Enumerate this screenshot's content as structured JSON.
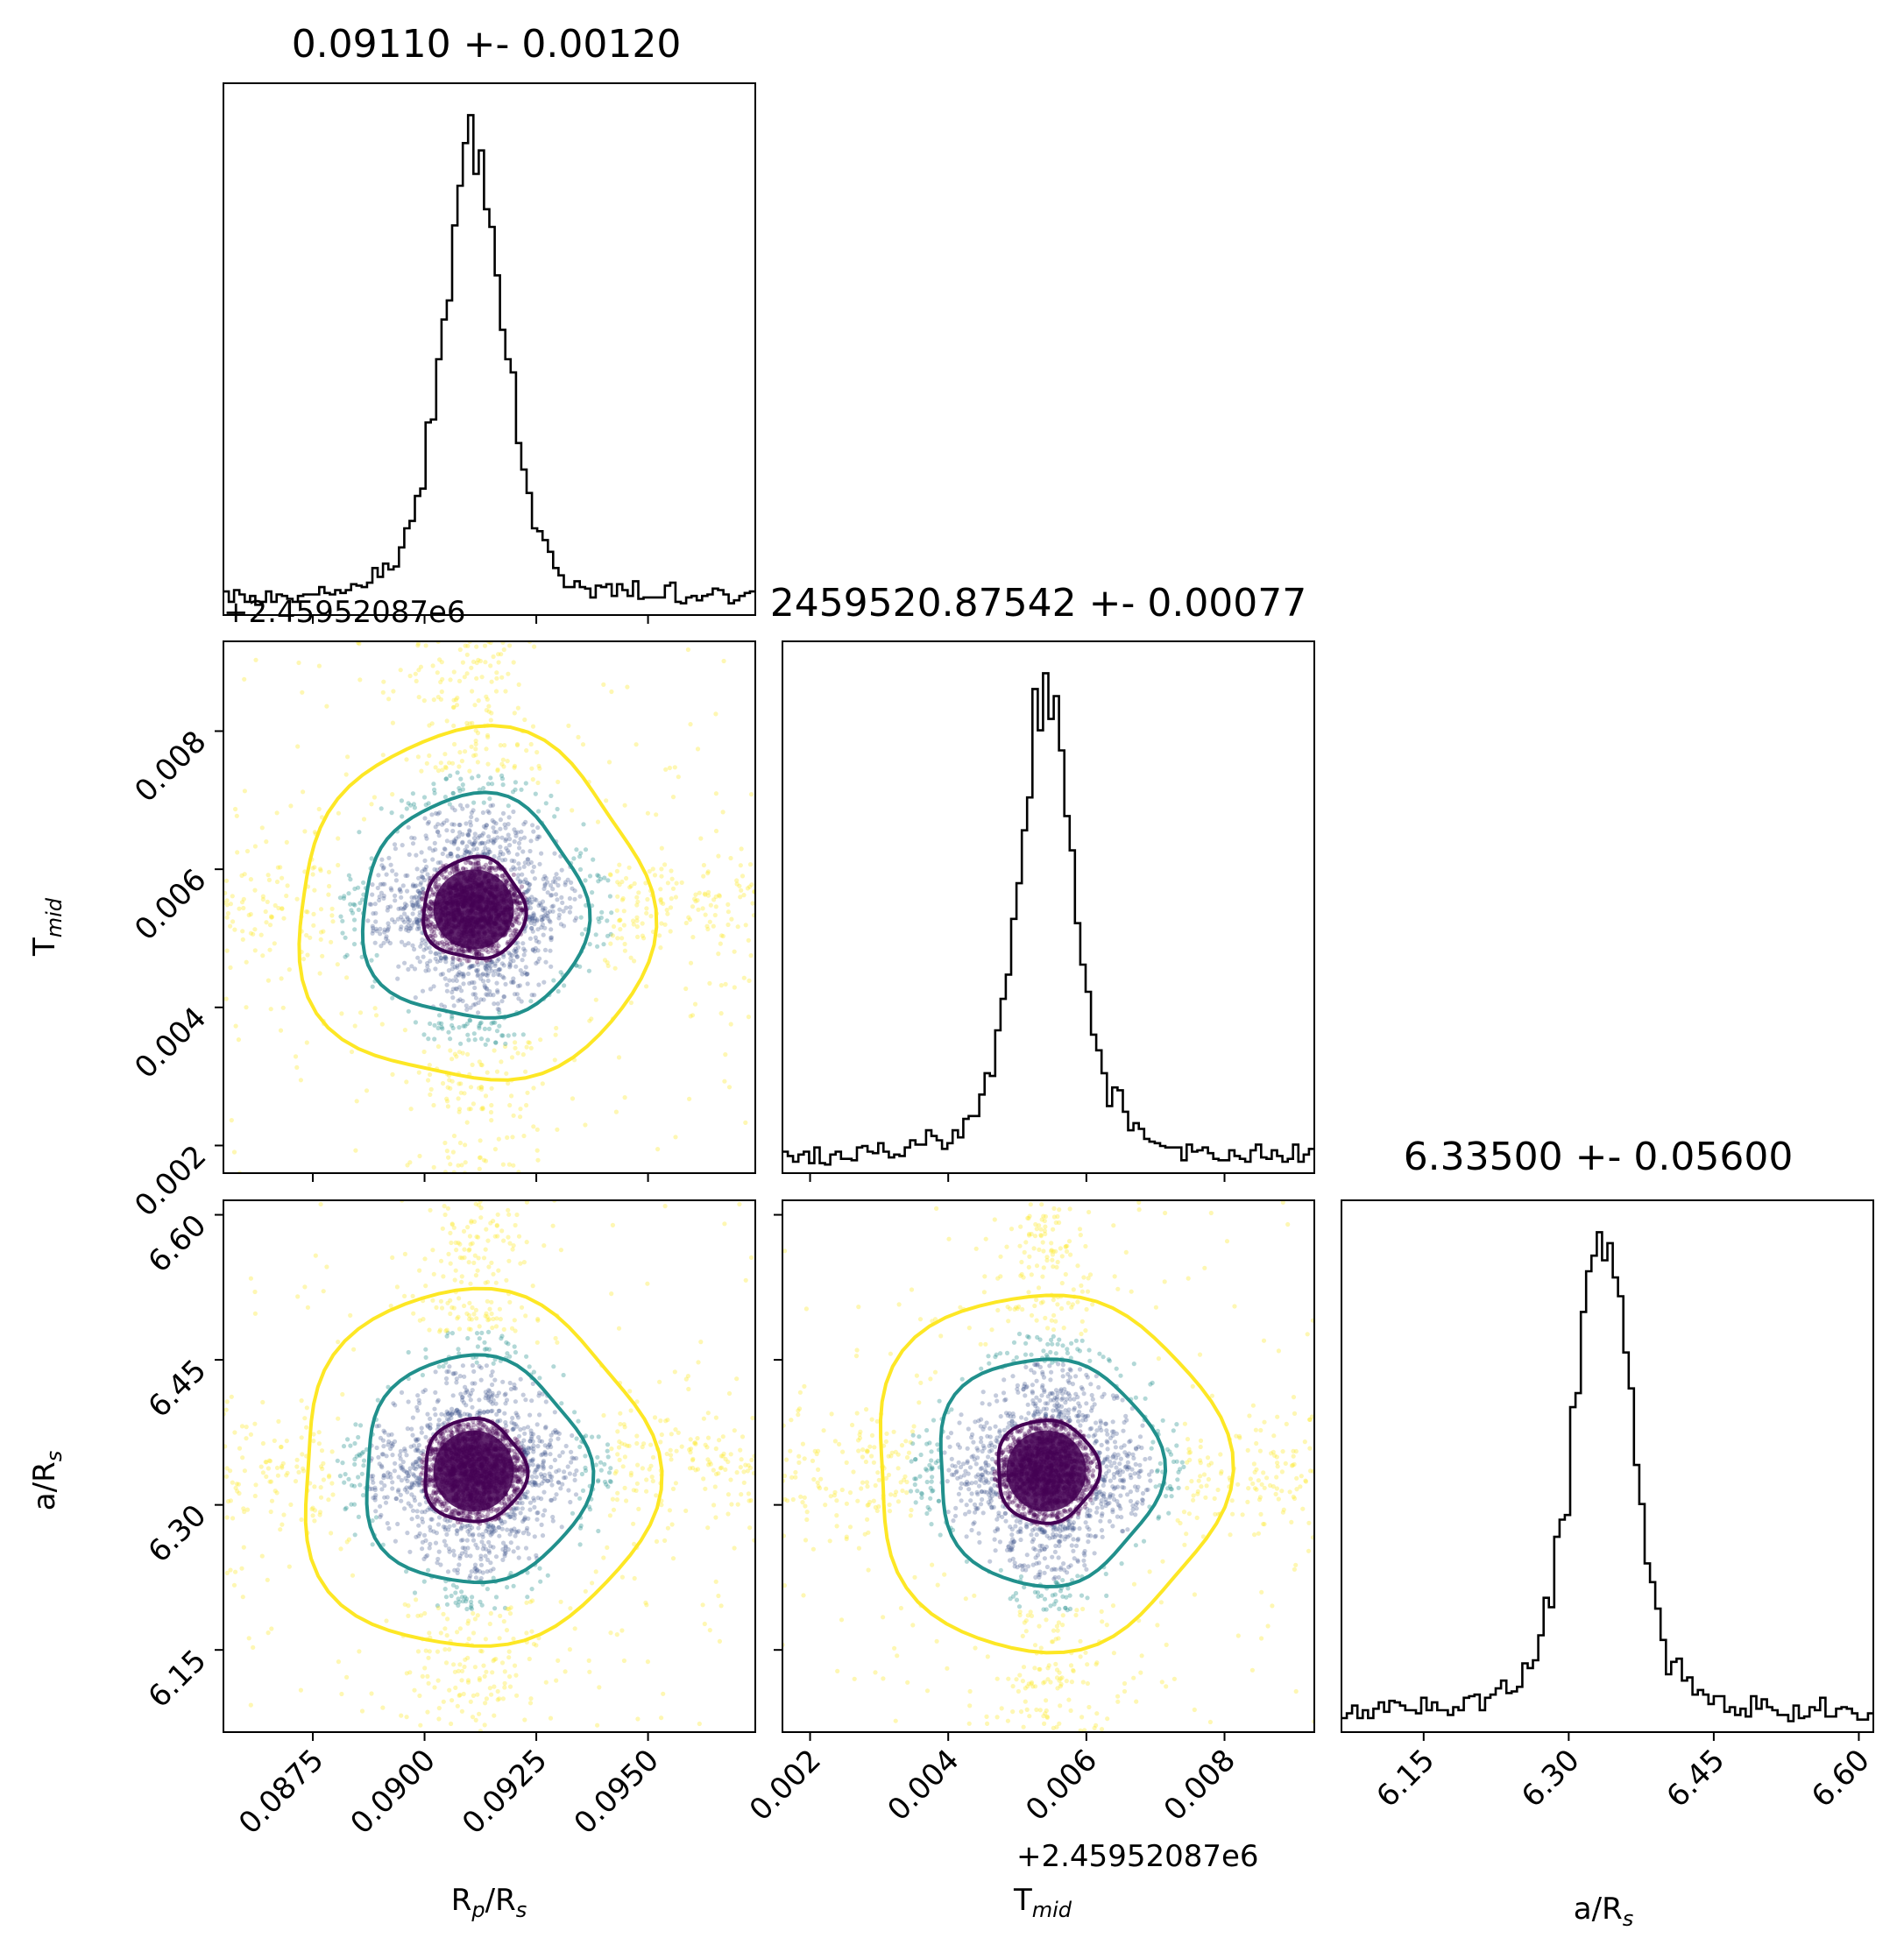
{
  "chart_data": {
    "type": "corner",
    "parameters": [
      {
        "name": "R_p/R_s",
        "label": "Rp/Rs",
        "label_sub": "p",
        "range": [
          0.0855,
          0.0974
        ],
        "ticks": [
          0.0875,
          0.09,
          0.0925,
          0.095
        ],
        "tick_labels": [
          "0.0875",
          "0.0900",
          "0.0925",
          "0.0950"
        ],
        "title": "0.09110 +- 0.00120",
        "mean": 0.0911,
        "sigma": 0.0012,
        "offset_text": ""
      },
      {
        "name": "T_mid",
        "label": "Tmid",
        "label_sub": "mid",
        "range": [
          0.0016,
          0.0093
        ],
        "ticks": [
          0.002,
          0.004,
          0.006,
          0.008
        ],
        "tick_labels": [
          "0.002",
          "0.004",
          "0.006",
          "0.008"
        ],
        "title": "2459520.87542 +- 0.00077",
        "mean": 0.00542,
        "sigma": 0.00077,
        "offset_text": "+2.45952087e6"
      },
      {
        "name": "a/R_s",
        "label": "a/Rs",
        "label_sub": "s",
        "range": [
          6.065,
          6.615
        ],
        "ticks": [
          6.15,
          6.3,
          6.45,
          6.6
        ],
        "tick_labels": [
          "6.15",
          "6.30",
          "6.45",
          "6.60"
        ],
        "title": "6.33500 +- 0.05600",
        "mean": 6.335,
        "sigma": 0.056,
        "offset_text": ""
      }
    ],
    "histogram_bins": 100,
    "samples_per_panel": 3000,
    "contour_levels": [
      "inner",
      "middle",
      "outer"
    ],
    "colors": {
      "inner": "#440154",
      "middle": "#21908c",
      "outer": "#fde725",
      "hist": "#000000"
    }
  },
  "labels": {
    "title_x": "0.09110 +- 0.00120",
    "title_t": "2459520.87542 +- 0.00077",
    "title_a": "6.33500 +- 0.05600",
    "offset_row1": "+2.45952087e6",
    "offset_bottom": "+2.45952087e6",
    "ylabel_t_main": "T",
    "ylabel_t_sub": "mid",
    "ylabel_a_main": "a/R",
    "ylabel_a_sub": "s",
    "xlabel_rp_main": "R",
    "xlabel_rp_sub": "p",
    "xlabel_rp_tail": "/R",
    "xlabel_rp_sub2": "s",
    "xlabel_t_main": "T",
    "xlabel_t_sub": "mid",
    "xlabel_a_main": "a/R",
    "xlabel_a_sub": "s"
  }
}
